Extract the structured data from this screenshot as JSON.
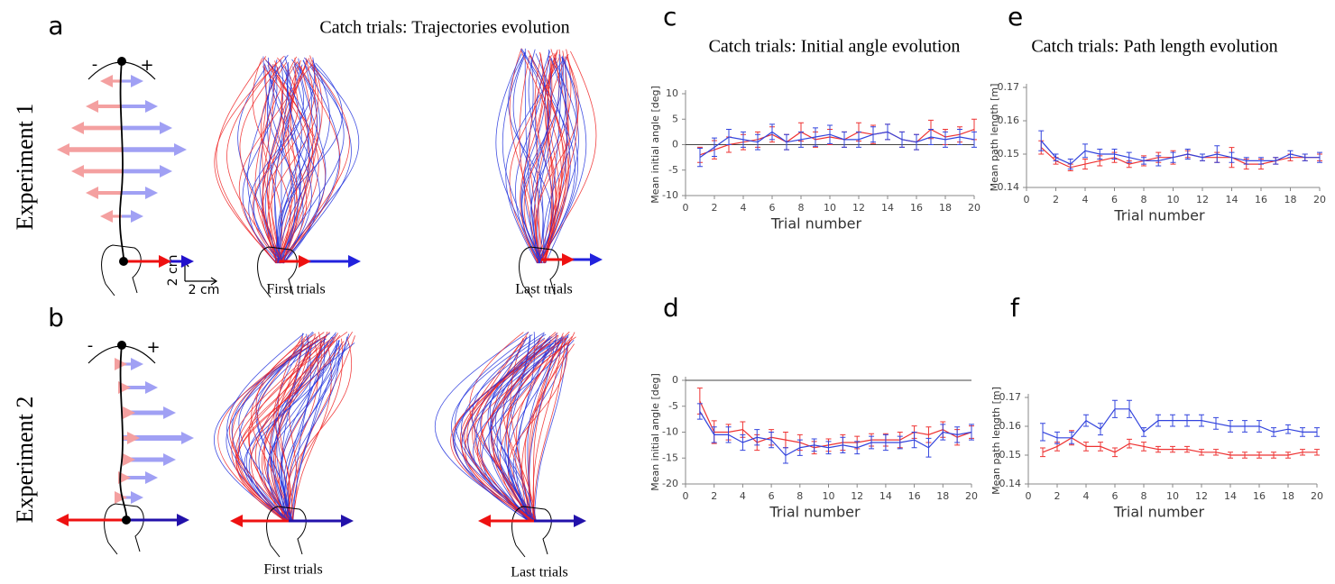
{
  "figure": {
    "traj_title": "Catch trials: Trajectories evolution",
    "panel_a": "a",
    "panel_b": "b",
    "exp1": "Experiment 1",
    "exp2": "Experiment 2",
    "first1": "First trials",
    "last1": "Last trials",
    "first2": "First trials",
    "last2": "Last trials",
    "scale_x": "2 cm",
    "scale_y": "2 cm",
    "minus1": "-",
    "plus1": "+",
    "minus2": "-",
    "plus2": "+"
  },
  "chart_data": [
    {
      "type": "line",
      "panel": "c",
      "title": "Catch trials: Initial angle evolution",
      "xlabel": "Trial number",
      "ylabel": "Mean initial angle [deg]",
      "x": [
        1,
        2,
        3,
        4,
        5,
        6,
        7,
        8,
        9,
        10,
        11,
        12,
        13,
        14,
        15,
        16,
        17,
        18,
        19,
        20
      ],
      "xlim": [
        0,
        20
      ],
      "xticks": [
        0,
        2,
        4,
        6,
        8,
        10,
        12,
        14,
        16,
        18,
        20
      ],
      "ylim": [
        -10,
        10
      ],
      "yticks": [
        -10,
        -5,
        0,
        5,
        10
      ],
      "reference_line": 0,
      "series": [
        {
          "color": "#ee3333",
          "values": [
            -2,
            -1,
            0,
            0.5,
            1,
            2,
            0.5,
            2.5,
            1,
            1.5,
            1,
            2.5,
            2,
            2.5,
            1,
            0.5,
            3,
            1.5,
            2,
            3
          ],
          "errors": [
            1.5,
            1.8,
            1.5,
            1.5,
            1.5,
            1.5,
            1.5,
            1.8,
            1.5,
            1.5,
            1.5,
            1.8,
            1.8,
            1.5,
            1.5,
            1.5,
            1.8,
            1.5,
            1.5,
            2
          ]
        },
        {
          "color": "#3344dd",
          "values": [
            -2.5,
            -0.5,
            1.5,
            1,
            0.5,
            2.5,
            0.5,
            1,
            1.5,
            2,
            1,
            1,
            2,
            2.5,
            1,
            0.5,
            1.5,
            1,
            1.5,
            1
          ],
          "errors": [
            1.8,
            1.8,
            1.5,
            1.5,
            1.5,
            1.5,
            1.5,
            1.5,
            1.8,
            1.8,
            1.5,
            1.5,
            1.5,
            1.5,
            1.5,
            1.5,
            1.5,
            1.5,
            1.5,
            1.5
          ]
        }
      ]
    },
    {
      "type": "line",
      "panel": "d",
      "xlabel": "Trial number",
      "ylabel": "Mean initial angle [deg]",
      "x": [
        1,
        2,
        3,
        4,
        5,
        6,
        7,
        8,
        9,
        10,
        11,
        12,
        13,
        14,
        15,
        16,
        17,
        18,
        19,
        20
      ],
      "xlim": [
        0,
        20
      ],
      "xticks": [
        0,
        2,
        4,
        6,
        8,
        10,
        12,
        14,
        16,
        18,
        20
      ],
      "ylim": [
        -20,
        0
      ],
      "yticks": [
        -20,
        -15,
        -10,
        -5,
        0
      ],
      "reference_line": 0,
      "series": [
        {
          "color": "#ee3333",
          "values": [
            -4,
            -10,
            -10,
            -9.5,
            -12,
            -11,
            -11.5,
            -12,
            -13,
            -12.5,
            -12,
            -12,
            -11.5,
            -11.5,
            -11.5,
            -10,
            -10.5,
            -9.5,
            -11,
            -10
          ],
          "errors": [
            2.5,
            2.2,
            1.5,
            1.5,
            1.5,
            1.5,
            1.5,
            1.5,
            1.2,
            1.2,
            1.5,
            1.2,
            1.2,
            1.2,
            1.5,
            1.2,
            1.5,
            1.5,
            1.5,
            1.2
          ]
        },
        {
          "color": "#3344dd",
          "values": [
            -6,
            -10.5,
            -10.5,
            -12,
            -11,
            -11.5,
            -14.5,
            -13,
            -12.5,
            -13,
            -12.5,
            -13,
            -12,
            -12,
            -12,
            -11.5,
            -13,
            -10,
            -10.5,
            -10
          ],
          "errors": [
            1.5,
            1.5,
            1.5,
            1.5,
            1.5,
            1.5,
            1.5,
            1.5,
            1.2,
            1.2,
            1.5,
            1.2,
            1.2,
            1.5,
            1.2,
            1.5,
            1.8,
            1.5,
            1.5,
            1.5
          ]
        }
      ]
    },
    {
      "type": "line",
      "panel": "e",
      "title": "Catch trials: Path length evolution",
      "xlabel": "Trial number",
      "ylabel": "Mean path length [m]",
      "x": [
        1,
        2,
        3,
        4,
        5,
        6,
        7,
        8,
        9,
        10,
        11,
        12,
        13,
        14,
        15,
        16,
        17,
        18,
        19,
        20
      ],
      "xlim": [
        0,
        20
      ],
      "xticks": [
        0,
        2,
        4,
        6,
        8,
        10,
        12,
        14,
        16,
        18,
        20
      ],
      "ylim": [
        0.14,
        0.17
      ],
      "yticks": [
        0.14,
        0.15,
        0.16,
        0.17
      ],
      "series": [
        {
          "color": "#ee3333",
          "values": [
            0.152,
            0.148,
            0.146,
            0.147,
            0.148,
            0.149,
            0.147,
            0.148,
            0.149,
            0.149,
            0.15,
            0.149,
            0.149,
            0.149,
            0.147,
            0.147,
            0.148,
            0.149,
            0.149,
            0.149
          ],
          "errors": [
            0.002,
            0.001,
            0.001,
            0.0015,
            0.0015,
            0.0015,
            0.001,
            0.0015,
            0.0015,
            0.002,
            0.001,
            0.001,
            0.0015,
            0.003,
            0.0015,
            0.0015,
            0.001,
            0.001,
            0.001,
            0.001
          ]
        },
        {
          "color": "#3344dd",
          "values": [
            0.154,
            0.149,
            0.147,
            0.151,
            0.15,
            0.15,
            0.149,
            0.148,
            0.148,
            0.149,
            0.15,
            0.149,
            0.15,
            0.149,
            0.148,
            0.148,
            0.148,
            0.15,
            0.149,
            0.149
          ],
          "errors": [
            0.003,
            0.001,
            0.0015,
            0.002,
            0.0015,
            0.0015,
            0.0015,
            0.001,
            0.0015,
            0.0015,
            0.0015,
            0.001,
            0.0025,
            0.0015,
            0.001,
            0.001,
            0.001,
            0.001,
            0.001,
            0.0015
          ]
        }
      ]
    },
    {
      "type": "line",
      "panel": "f",
      "xlabel": "Trial number",
      "ylabel": "Mean path length [m]",
      "x": [
        1,
        2,
        3,
        4,
        5,
        6,
        7,
        8,
        9,
        10,
        11,
        12,
        13,
        14,
        15,
        16,
        17,
        18,
        19,
        20
      ],
      "xlim": [
        0,
        20
      ],
      "xticks": [
        0,
        2,
        4,
        6,
        8,
        10,
        12,
        14,
        16,
        18,
        20
      ],
      "ylim": [
        0.14,
        0.17
      ],
      "yticks": [
        0.14,
        0.15,
        0.16,
        0.17
      ],
      "series": [
        {
          "color": "#ee3333",
          "values": [
            0.151,
            0.153,
            0.156,
            0.153,
            0.153,
            0.151,
            0.154,
            0.153,
            0.152,
            0.152,
            0.152,
            0.151,
            0.151,
            0.15,
            0.15,
            0.15,
            0.15,
            0.15,
            0.151,
            0.151
          ],
          "errors": [
            0.0015,
            0.0015,
            0.0025,
            0.0015,
            0.0015,
            0.0015,
            0.0015,
            0.0015,
            0.001,
            0.001,
            0.001,
            0.001,
            0.001,
            0.001,
            0.001,
            0.001,
            0.001,
            0.001,
            0.001,
            0.001
          ]
        },
        {
          "color": "#3344dd",
          "values": [
            0.158,
            0.156,
            0.156,
            0.162,
            0.159,
            0.166,
            0.166,
            0.158,
            0.162,
            0.162,
            0.162,
            0.162,
            0.161,
            0.16,
            0.16,
            0.16,
            0.158,
            0.159,
            0.158,
            0.158
          ],
          "errors": [
            0.003,
            0.002,
            0.002,
            0.002,
            0.002,
            0.003,
            0.003,
            0.0015,
            0.002,
            0.002,
            0.002,
            0.002,
            0.002,
            0.002,
            0.002,
            0.002,
            0.0015,
            0.0015,
            0.0015,
            0.0015
          ]
        }
      ]
    }
  ]
}
